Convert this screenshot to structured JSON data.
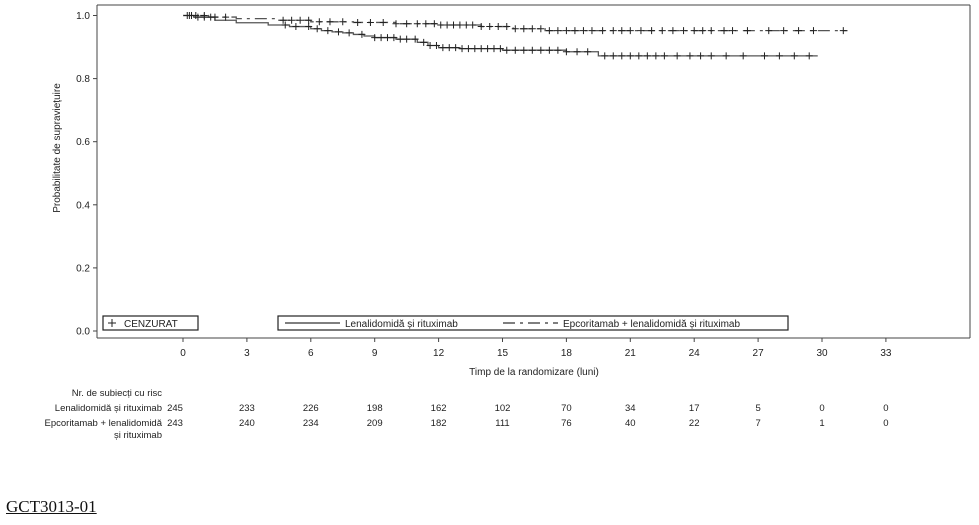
{
  "chart_data": {
    "type": "line",
    "title": "",
    "xlabel": "Timp de la randomizare (luni)",
    "ylabel": "Probabilitate de supraviețuire",
    "xlim": [
      -7.5,
      37
    ],
    "ylim": [
      0,
      1
    ],
    "x_ticks": [
      0,
      3,
      6,
      9,
      12,
      15,
      18,
      21,
      24,
      27,
      30,
      33
    ],
    "y_ticks": [
      0.0,
      0.2,
      0.4,
      0.6,
      0.8,
      1.0
    ],
    "y_tick_labels": [
      "0.0",
      "0.2",
      "0.4",
      "0.6",
      "0.8",
      "1.0"
    ],
    "grid": false,
    "legend": {
      "placement": "bottom",
      "censor_label": "CENZURAT",
      "entries": [
        "Lenalidomidă și rituximab",
        "Epcoritamab + lenalidomidă și rituximab"
      ]
    },
    "series": [
      {
        "name": "Lenalidomidă și rituximab",
        "line_style": "solid",
        "color": "#555555",
        "steps": [
          [
            0,
            1.0
          ],
          [
            0.5,
            0.995
          ],
          [
            1.5,
            0.985
          ],
          [
            2.5,
            0.977
          ],
          [
            4,
            0.97
          ],
          [
            5,
            0.965
          ],
          [
            6,
            0.958
          ],
          [
            6.5,
            0.952
          ],
          [
            7,
            0.948
          ],
          [
            7.5,
            0.945
          ],
          [
            8,
            0.94
          ],
          [
            8.5,
            0.935
          ],
          [
            9,
            0.93
          ],
          [
            10,
            0.925
          ],
          [
            11,
            0.915
          ],
          [
            11.5,
            0.905
          ],
          [
            12,
            0.898
          ],
          [
            13,
            0.895
          ],
          [
            15,
            0.89
          ],
          [
            18,
            0.885
          ],
          [
            19.5,
            0.872
          ],
          [
            29.8,
            0.872
          ]
        ],
        "censor_times": [
          0.2,
          0.4,
          0.7,
          1.0,
          1.3,
          4.8,
          5.3,
          5.9,
          6.3,
          6.8,
          7.3,
          7.8,
          8.4,
          9.0,
          9.3,
          9.6,
          9.9,
          10.2,
          10.5,
          10.9,
          11.3,
          11.6,
          11.9,
          12.2,
          12.5,
          12.8,
          13.1,
          13.4,
          13.7,
          14.0,
          14.3,
          14.6,
          14.9,
          15.2,
          15.6,
          16.0,
          16.4,
          16.8,
          17.2,
          17.6,
          18.0,
          18.5,
          19.0,
          19.8,
          20.2,
          20.6,
          21.0,
          21.4,
          21.8,
          22.2,
          22.6,
          23.2,
          23.8,
          24.3,
          24.8,
          25.5,
          26.3,
          27.3,
          28.0,
          28.7,
          29.4
        ]
      },
      {
        "name": "Epcoritamab + lenalidomidă și rituximab",
        "line_style": "dashed",
        "color": "#555555",
        "steps": [
          [
            0,
            1.0
          ],
          [
            1.2,
            0.995
          ],
          [
            2.5,
            0.99
          ],
          [
            4.5,
            0.985
          ],
          [
            6,
            0.98
          ],
          [
            8,
            0.978
          ],
          [
            10,
            0.974
          ],
          [
            12,
            0.97
          ],
          [
            14,
            0.965
          ],
          [
            15.5,
            0.958
          ],
          [
            17,
            0.952
          ],
          [
            31.2,
            0.952
          ]
        ],
        "censor_times": [
          0.3,
          0.6,
          1.0,
          1.5,
          2.0,
          4.7,
          5.1,
          5.5,
          5.9,
          6.4,
          6.9,
          7.5,
          8.2,
          8.8,
          9.4,
          10.0,
          10.5,
          11.0,
          11.4,
          11.8,
          12.1,
          12.4,
          12.7,
          13.0,
          13.3,
          13.6,
          14.0,
          14.4,
          14.8,
          15.2,
          15.6,
          16.0,
          16.4,
          16.8,
          17.2,
          17.6,
          18.0,
          18.4,
          18.8,
          19.2,
          19.7,
          20.2,
          20.6,
          21.0,
          21.5,
          22.0,
          22.5,
          23.0,
          23.5,
          24.0,
          24.4,
          24.8,
          25.4,
          25.8,
          26.5,
          27.5,
          28.2,
          28.9,
          29.6,
          31.0
        ]
      }
    ],
    "risk_table": {
      "header": "Nr. de subiecți cu risc",
      "rows": [
        {
          "label_lines": [
            "Lenalidomidă și rituximab"
          ],
          "values": [
            "245",
            "233",
            "226",
            "198",
            "162",
            "102",
            "70",
            "34",
            "17",
            "5",
            "0",
            "0"
          ]
        },
        {
          "label_lines": [
            "Epcoritamab + lenalidomidă",
            "și rituximab"
          ],
          "values": [
            "243",
            "240",
            "234",
            "209",
            "182",
            "111",
            "76",
            "40",
            "22",
            "7",
            "1",
            "0"
          ]
        }
      ]
    }
  },
  "footer": {
    "study_id": "GCT3013-01"
  }
}
